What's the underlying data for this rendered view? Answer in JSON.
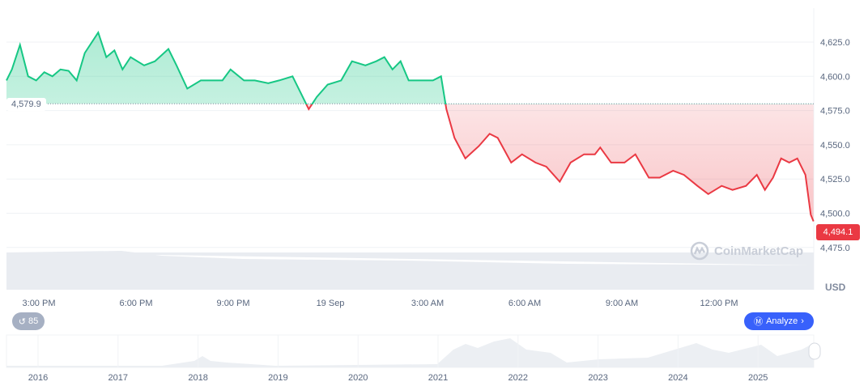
{
  "chart_data": {
    "type": "area",
    "currency": "USD",
    "baseline": 4579.9,
    "baseline_label": "4,579.9",
    "last_price_label": "4,494.1",
    "ylim": [
      4450,
      4650
    ],
    "y_ticks": [
      "4,625.0",
      "4,600.0",
      "4,575.0",
      "4,550.0",
      "4,525.0",
      "4,500.0",
      "4,475.0"
    ],
    "y_tick_values": [
      4625,
      4600,
      4575,
      4550,
      4525,
      4500,
      4475
    ],
    "x_ticks": [
      "3:00 PM",
      "6:00 PM",
      "9:00 PM",
      "19 Sep",
      "3:00 AM",
      "6:00 AM",
      "9:00 AM",
      "12:00 PM"
    ],
    "grid": true,
    "colors": {
      "up": "#16c784",
      "down": "#ea3943"
    },
    "series": [
      {
        "x": [
          "09-18 14:00",
          "09-18 14:10",
          "09-18 14:25",
          "09-18 14:40",
          "09-18 14:55",
          "09-18 15:10",
          "09-18 15:25",
          "09-18 15:40",
          "09-18 15:55",
          "09-18 16:10",
          "09-18 16:25",
          "09-18 16:50",
          "09-18 17:05",
          "09-18 17:20",
          "09-18 17:35",
          "09-18 17:50",
          "09-18 18:15",
          "09-18 18:35",
          "09-18 19:00",
          "09-18 19:15",
          "09-18 19:35",
          "09-18 20:00",
          "09-18 20:20",
          "09-18 20:40",
          "09-18 20:55",
          "09-18 21:20",
          "09-18 21:40",
          "09-18 22:05",
          "09-18 22:25",
          "09-18 22:50",
          "09-18 23:05",
          "09-18 23:20",
          "09-18 23:35",
          "09-18 23:55",
          "09-19 00:20",
          "09-19 00:40",
          "09-19 01:05",
          "09-19 01:25",
          "09-19 01:40",
          "09-19 01:55",
          "09-19 02:10",
          "09-19 02:25",
          "09-19 02:50",
          "09-19 03:10",
          "09-19 03:25",
          "09-19 03:35",
          "09-19 03:50",
          "09-19 04:10",
          "09-19 04:35",
          "09-19 04:55",
          "09-19 05:10",
          "09-19 05:35",
          "09-19 05:55",
          "09-19 06:20",
          "09-19 06:40",
          "09-19 07:05",
          "09-19 07:25",
          "09-19 07:50",
          "09-19 08:10",
          "09-19 08:20",
          "09-19 08:40",
          "09-19 09:05",
          "09-19 09:25",
          "09-19 09:50",
          "09-19 10:10",
          "09-19 10:35",
          "09-19 10:55",
          "09-19 11:20",
          "09-19 11:40",
          "09-19 12:05",
          "09-19 12:25",
          "09-19 12:50",
          "09-19 13:10",
          "09-19 13:25",
          "09-19 13:40",
          "09-19 13:55",
          "09-19 14:10",
          "09-19 14:25",
          "09-19 14:40",
          "09-19 14:50",
          "09-19 14:55"
        ],
        "y": [
          4597,
          4605,
          4623,
          4600,
          4597,
          4603,
          4600,
          4605,
          4604,
          4597,
          4617,
          4632,
          4614,
          4619,
          4605,
          4614,
          4608,
          4611,
          4620,
          4608,
          4591,
          4597,
          4597,
          4597,
          4605,
          4597,
          4597,
          4595,
          4597,
          4600,
          4588,
          4576,
          4585,
          4594,
          4597,
          4611,
          4608,
          4611,
          4614,
          4605,
          4611,
          4597,
          4597,
          4597,
          4600,
          4576,
          4555,
          4540,
          4549,
          4558,
          4555,
          4537,
          4543,
          4537,
          4534,
          4523,
          4537,
          4543,
          4543,
          4548,
          4537,
          4537,
          4543,
          4526,
          4526,
          4531,
          4528,
          4520,
          4514,
          4520,
          4517,
          4520,
          4528,
          4517,
          4526,
          4540,
          4537,
          4540,
          4528,
          4499,
          4494.1
        ]
      }
    ]
  },
  "navigator": {
    "years": [
      "2016",
      "2017",
      "2018",
      "2019",
      "2020",
      "2021",
      "2022",
      "2023",
      "2024",
      "2025"
    ]
  },
  "controls": {
    "history_count": "85",
    "analyze_label": "Analyze",
    "currency_label": "USD"
  },
  "watermark": "CoinMarketCap"
}
